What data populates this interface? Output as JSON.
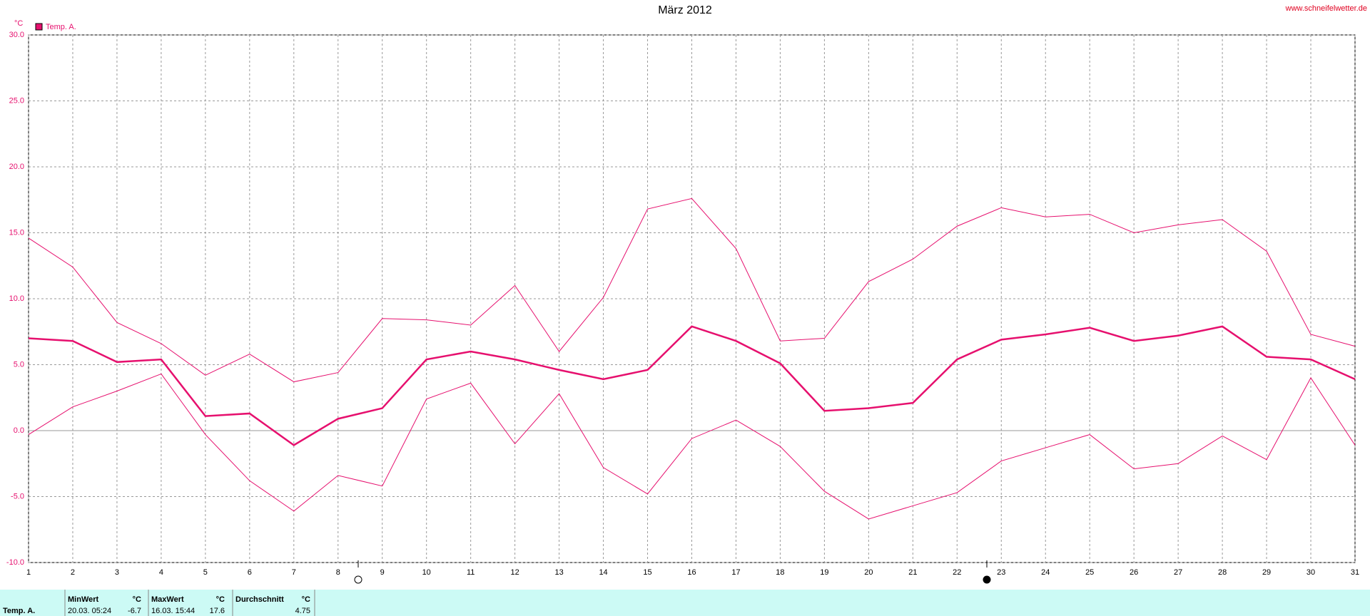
{
  "chart_data": {
    "type": "line",
    "title": "März 2012",
    "source": "www.schneifelwetter.de",
    "y_label": "°C",
    "x": [
      1,
      2,
      3,
      4,
      5,
      6,
      7,
      8,
      9,
      10,
      11,
      12,
      13,
      14,
      15,
      16,
      17,
      18,
      19,
      20,
      21,
      22,
      23,
      24,
      25,
      26,
      27,
      28,
      29,
      30,
      31
    ],
    "xlim": [
      1,
      31
    ],
    "xticks": [
      1,
      2,
      3,
      4,
      5,
      6,
      7,
      8,
      9,
      10,
      11,
      12,
      13,
      14,
      15,
      16,
      17,
      18,
      19,
      20,
      21,
      22,
      23,
      24,
      25,
      26,
      27,
      28,
      29,
      30,
      31
    ],
    "ylim": [
      -10,
      30
    ],
    "yticks": [
      {
        "value": -10,
        "label": "-10.0"
      },
      {
        "value": -5,
        "label": "-5.0"
      },
      {
        "value": 0,
        "label": "0.0"
      },
      {
        "value": 5,
        "label": "5.0"
      },
      {
        "value": 10,
        "label": "10.0"
      },
      {
        "value": 15,
        "label": "15.0"
      },
      {
        "value": 20,
        "label": "20.0"
      },
      {
        "value": 25,
        "label": "25.0"
      },
      {
        "value": 30,
        "label": "30.0"
      }
    ],
    "grid": true,
    "legend": "top-left",
    "series": [
      {
        "name": "Temp. A.",
        "color": "#e6106e",
        "width": 2.5,
        "values": [
          7.0,
          6.8,
          5.2,
          5.4,
          1.1,
          1.3,
          -1.1,
          0.9,
          1.7,
          5.4,
          6.0,
          5.4,
          4.6,
          3.9,
          4.6,
          7.9,
          6.8,
          5.1,
          1.5,
          1.7,
          2.1,
          5.4,
          6.9,
          7.3,
          7.8,
          6.8,
          7.2,
          7.9,
          5.6,
          5.4,
          3.9
        ]
      },
      {
        "color": "#e6106e",
        "width": 1,
        "values": [
          14.6,
          12.4,
          8.2,
          6.6,
          4.2,
          5.8,
          3.7,
          4.4,
          8.5,
          8.4,
          8.0,
          11.0,
          6.0,
          10.1,
          16.8,
          17.6,
          13.8,
          6.8,
          7.0,
          11.3,
          13.0,
          15.5,
          16.9,
          16.2,
          16.4,
          15.0,
          15.6,
          16.0,
          13.6,
          7.3,
          6.4
        ]
      },
      {
        "color": "#e6106e",
        "width": 1,
        "values": [
          -0.3,
          1.8,
          3.0,
          4.3,
          -0.3,
          -3.8,
          -6.1,
          -3.4,
          -4.2,
          2.4,
          3.6,
          -1.0,
          2.8,
          -2.8,
          -4.8,
          -0.6,
          0.8,
          -1.2,
          -4.6,
          -6.7,
          -5.7,
          -4.7,
          -2.3,
          -1.3,
          -0.3,
          -2.9,
          -2.5,
          -0.4,
          -2.2,
          4.0,
          -1.1
        ]
      }
    ]
  },
  "stats": {
    "label": "Temp. A.",
    "columns": [
      {
        "header": "MinWert",
        "unit": "°C",
        "date": "20.03. 05:24",
        "value": -6.7
      },
      {
        "header": "MaxWert",
        "unit": "°C",
        "date": "16.03. 15:44",
        "value": 17.6
      },
      {
        "header": "Durchschnitt",
        "unit": "°C",
        "value": 4.75
      }
    ]
  }
}
